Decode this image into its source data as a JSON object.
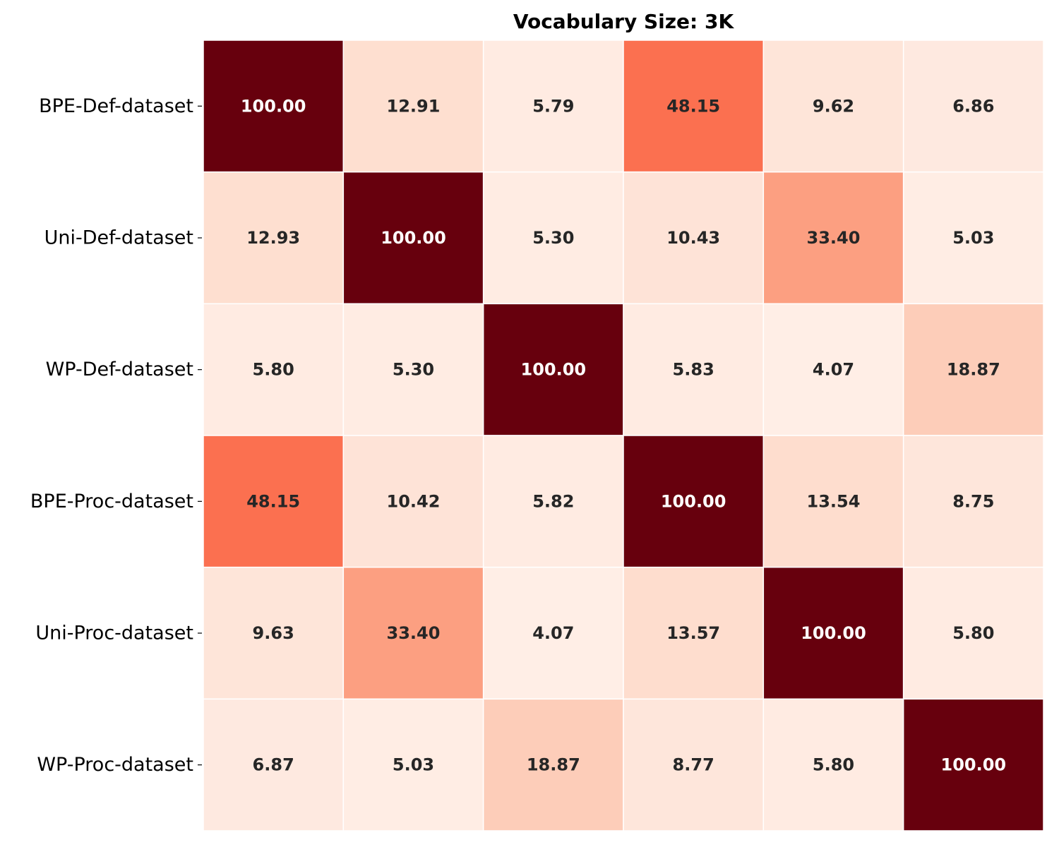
{
  "chart_data": {
    "type": "heatmap",
    "title": "Vocabulary Size: 3K",
    "xlabel": "",
    "ylabel": "",
    "row_labels": [
      "BPE-Def-dataset",
      "Uni-Def-dataset",
      "WP-Def-dataset",
      "BPE-Proc-dataset",
      "Uni-Proc-dataset",
      "WP-Proc-dataset"
    ],
    "column_labels": [],
    "values": [
      [
        100.0,
        12.91,
        5.79,
        48.15,
        9.62,
        6.86
      ],
      [
        12.93,
        100.0,
        5.3,
        10.43,
        33.4,
        5.03
      ],
      [
        5.8,
        5.3,
        100.0,
        5.83,
        4.07,
        18.87
      ],
      [
        48.15,
        10.42,
        5.82,
        100.0,
        13.54,
        8.75
      ],
      [
        9.63,
        33.4,
        4.07,
        13.57,
        100.0,
        5.8
      ],
      [
        6.87,
        5.03,
        18.87,
        8.77,
        5.8,
        100.0
      ]
    ],
    "value_range": [
      0,
      100
    ],
    "colormap": "Reds",
    "annotation_format": "2 decimals",
    "colorbar": false,
    "grid_line_color": "#ffffff",
    "light_text_color": "#ffffff",
    "dark_text_color": "#262626"
  }
}
